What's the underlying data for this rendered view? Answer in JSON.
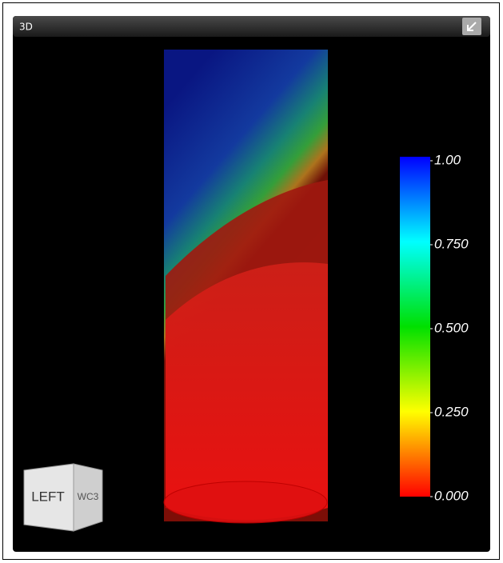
{
  "panel": {
    "title": "3D"
  },
  "colorbar": {
    "lim": [
      0,
      1
    ],
    "ticks": [
      {
        "value": 1,
        "label": "1.00"
      },
      {
        "value": 0.75,
        "label": "0.750"
      },
      {
        "value": 0.5,
        "label": "0.500"
      },
      {
        "value": 0.25,
        "label": "0.250"
      },
      {
        "value": 0,
        "label": "0.000"
      }
    ]
  },
  "view_cube": {
    "front": "LEFT",
    "side": "WC3"
  }
}
